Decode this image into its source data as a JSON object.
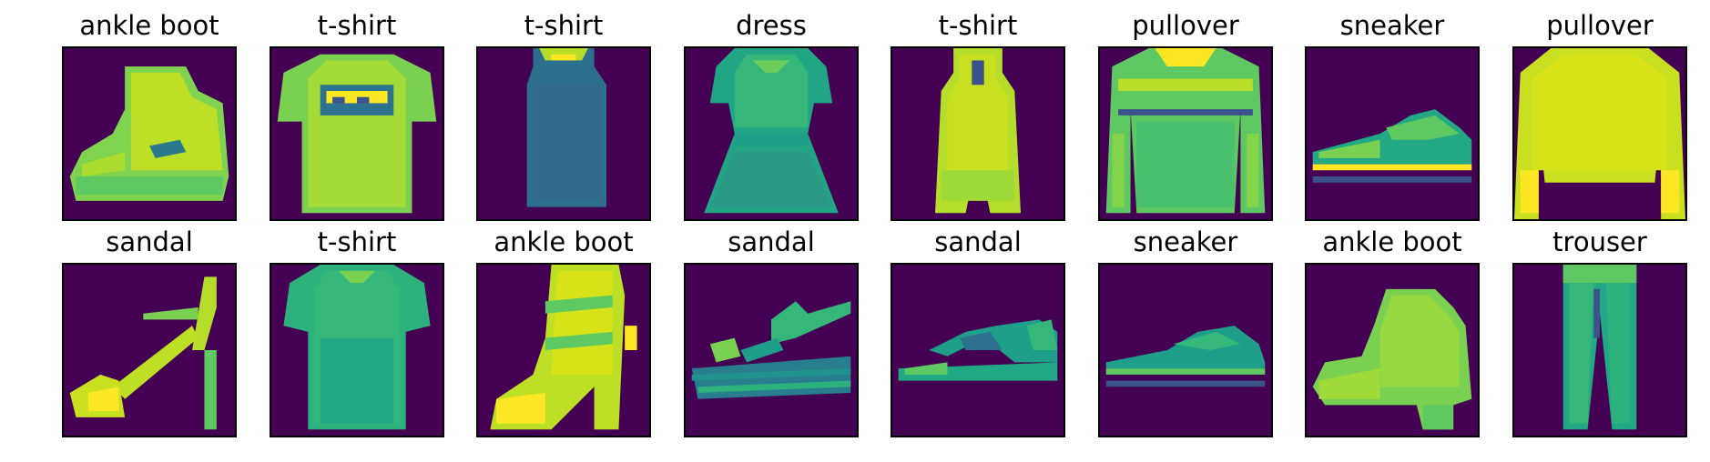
{
  "figure": {
    "background_color": "#ffffff",
    "image_background_color": "#440154",
    "colormap": "viridis",
    "rows": 2,
    "cols": 8
  },
  "images": [
    {
      "label": "ankle boot",
      "icon": "ankle-boot-icon"
    },
    {
      "label": "t-shirt",
      "icon": "t-shirt-icon"
    },
    {
      "label": "t-shirt",
      "icon": "tank-top-icon"
    },
    {
      "label": "dress",
      "icon": "dress-icon"
    },
    {
      "label": "t-shirt",
      "icon": "top-icon"
    },
    {
      "label": "pullover",
      "icon": "pullover-icon"
    },
    {
      "label": "sneaker",
      "icon": "sneaker-icon"
    },
    {
      "label": "pullover",
      "icon": "pullover-icon"
    },
    {
      "label": "sandal",
      "icon": "high-heel-sandal-icon"
    },
    {
      "label": "t-shirt",
      "icon": "t-shirt-icon"
    },
    {
      "label": "ankle boot",
      "icon": "heeled-boot-icon"
    },
    {
      "label": "sandal",
      "icon": "platform-sandal-icon"
    },
    {
      "label": "sandal",
      "icon": "flat-sandal-icon"
    },
    {
      "label": "sneaker",
      "icon": "sneaker-icon"
    },
    {
      "label": "ankle boot",
      "icon": "ankle-boot-icon"
    },
    {
      "label": "trouser",
      "icon": "trouser-icon"
    }
  ]
}
